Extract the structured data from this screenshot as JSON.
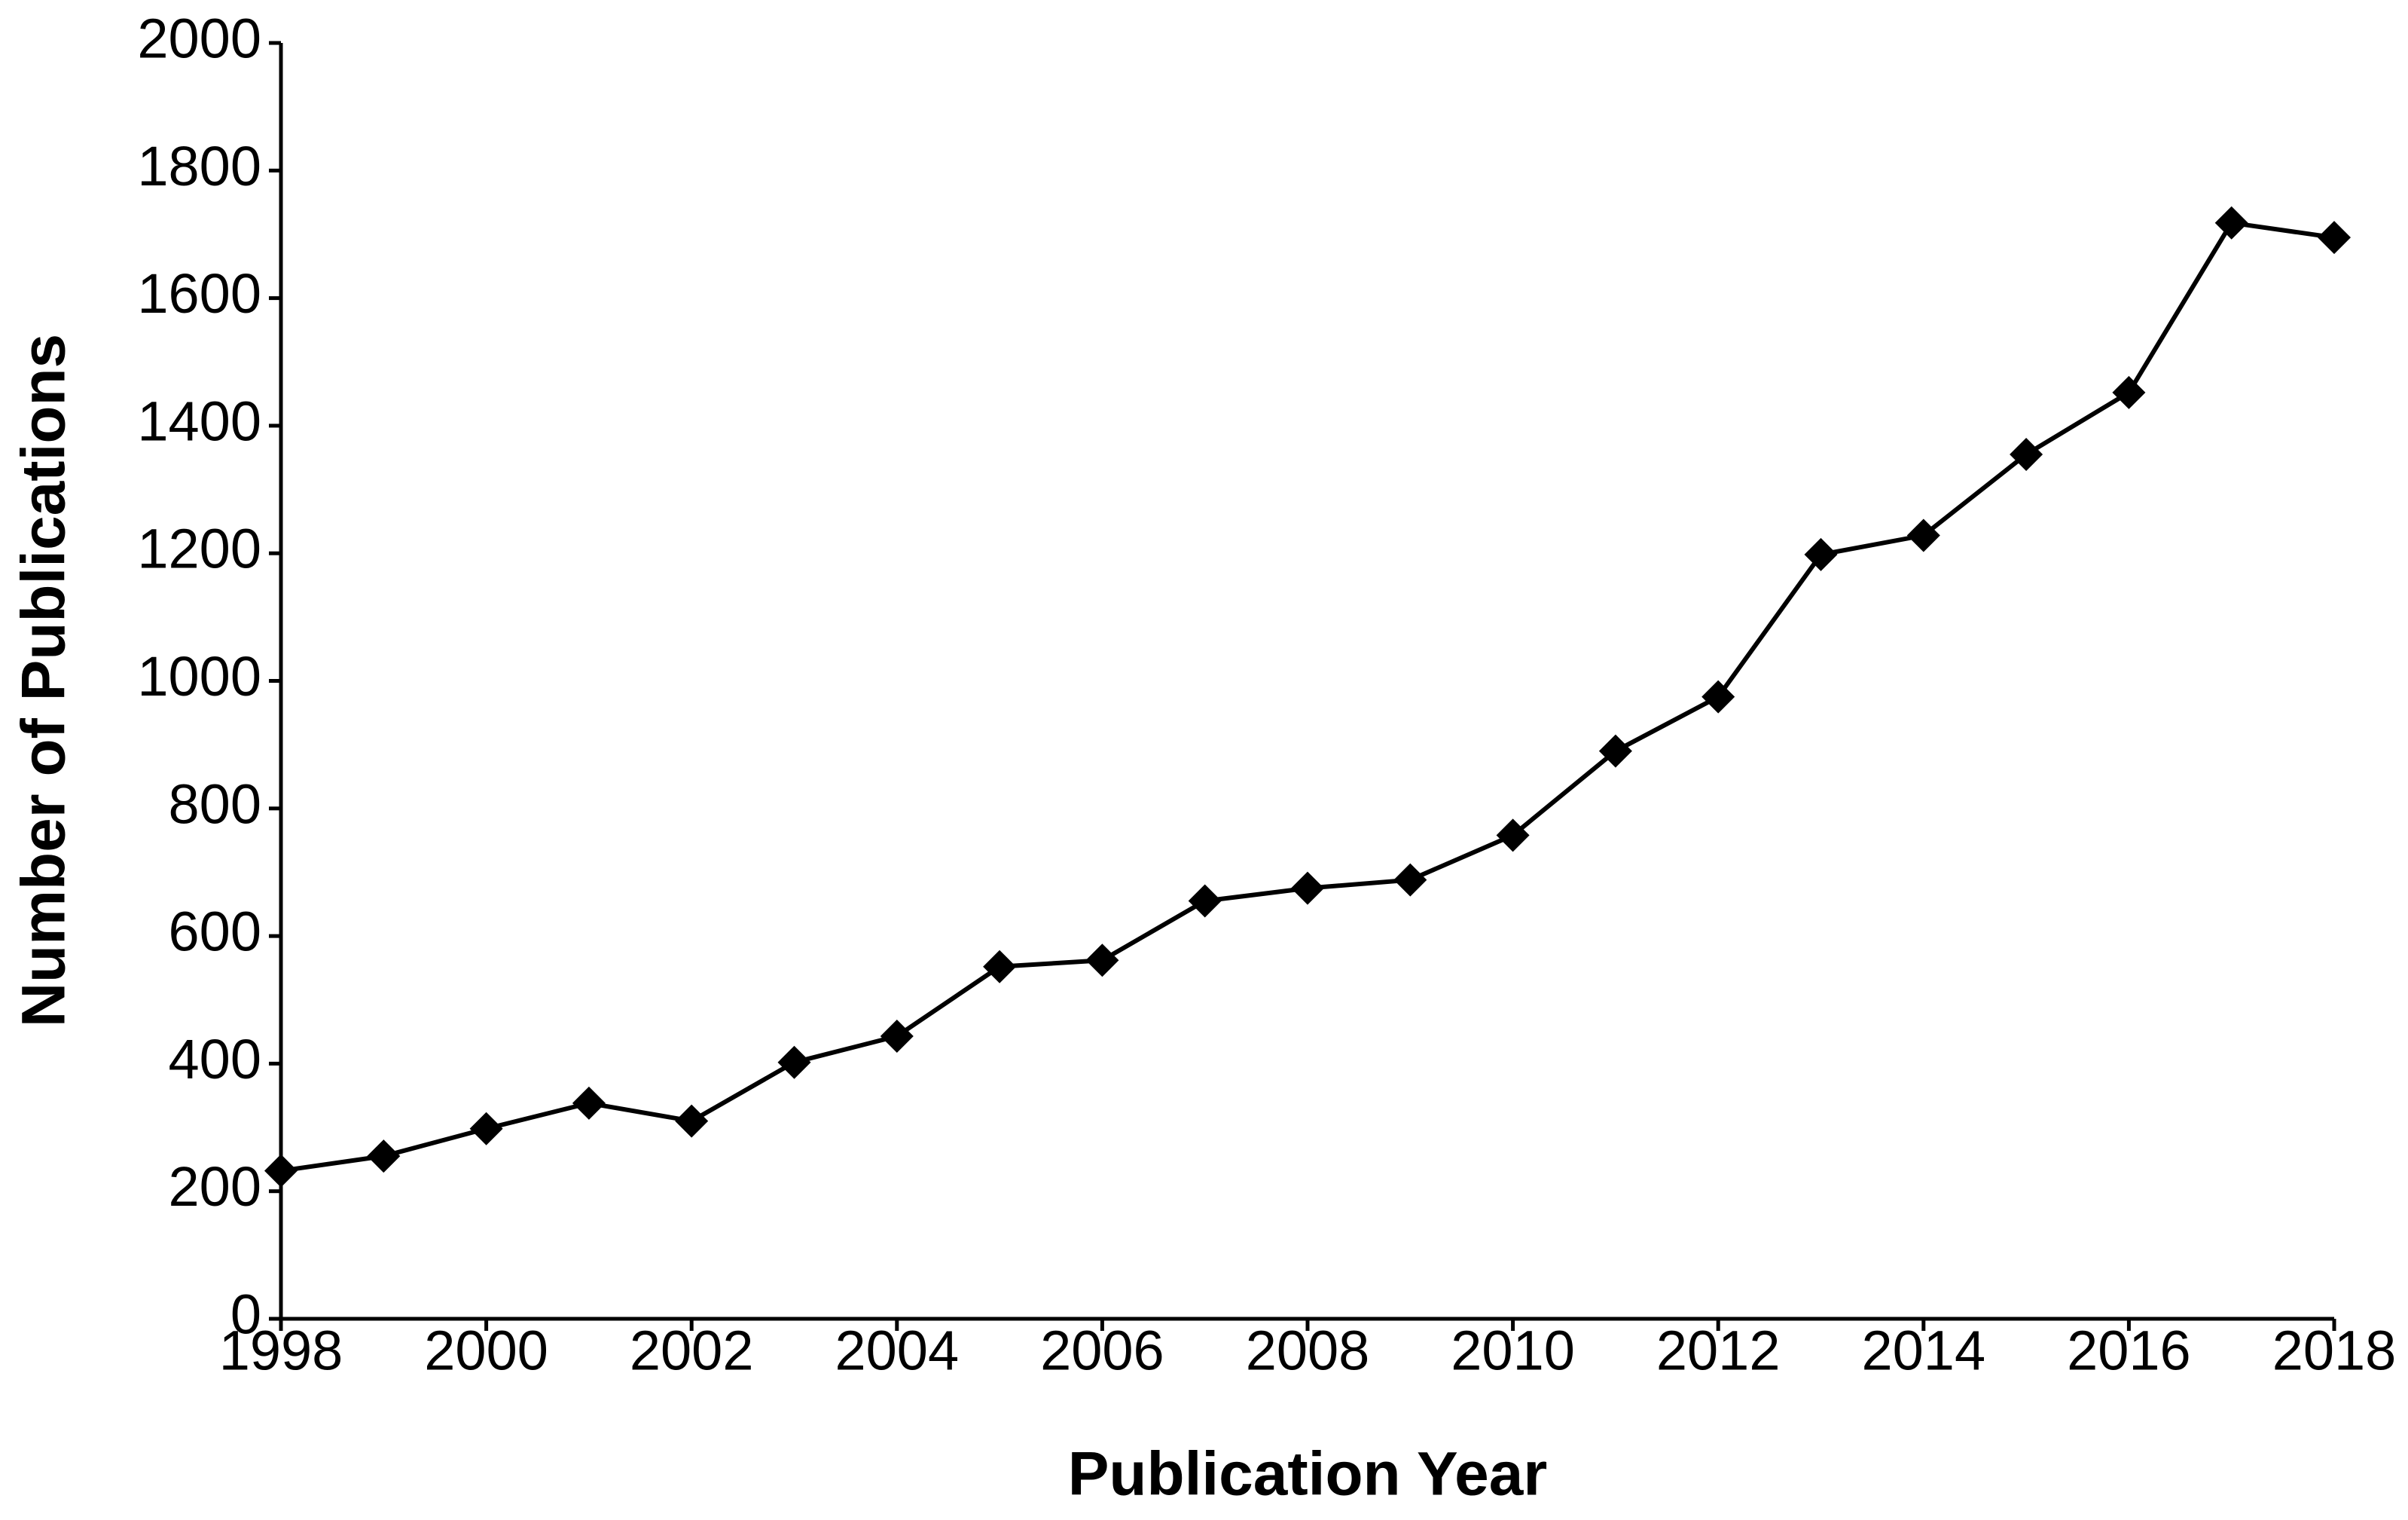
{
  "chart_data": {
    "type": "line",
    "x_label": "Publication Year",
    "y_label": "Number of Publications",
    "x": [
      1998,
      1999,
      2000,
      2001,
      2002,
      2003,
      2004,
      2005,
      2006,
      2007,
      2008,
      2009,
      2010,
      2011,
      2012,
      2013,
      2014,
      2015,
      2016,
      2017,
      2018
    ],
    "values": [
      232,
      255,
      298,
      338,
      310,
      402,
      443,
      552,
      562,
      655,
      675,
      688,
      758,
      890,
      975,
      1198,
      1228,
      1355,
      1452,
      1718,
      1695
    ],
    "color": "#000000",
    "xlim": [
      1998,
      2018
    ],
    "xticks": [
      1998,
      2000,
      2002,
      2004,
      2006,
      2008,
      2010,
      2012,
      2014,
      2016,
      2018
    ],
    "ylim": [
      0,
      2000
    ],
    "yticks": [
      0,
      200,
      400,
      600,
      800,
      1000,
      1200,
      1400,
      1600,
      1800,
      2000
    ],
    "grid": false
  }
}
